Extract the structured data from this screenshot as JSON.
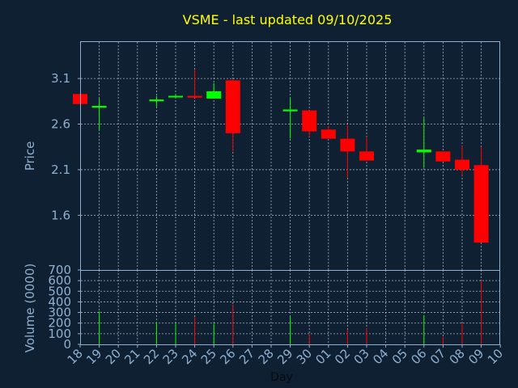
{
  "chart_data": [
    {
      "type": "candlestick",
      "title": "VSME - last updated 09/10/2025",
      "xlabel": "Day",
      "ylabel": "Price",
      "ylim": [
        1.0,
        3.5
      ],
      "y_ticks": [
        "1.6",
        "2.1",
        "2.6",
        "3.1"
      ],
      "y_tick_values": [
        1.6,
        2.1,
        2.6,
        3.1
      ],
      "grid": true,
      "x_tick_labels": [
        "18",
        "19",
        "20",
        "21",
        "22",
        "23",
        "24",
        "25",
        "26",
        "27",
        "28",
        "29",
        "30",
        "01",
        "02",
        "03",
        "04",
        "05",
        "06",
        "07",
        "08",
        "09",
        "10"
      ],
      "bars": [
        {
          "day": "18",
          "open": 2.93,
          "high": 2.93,
          "low": 2.82,
          "close": 2.82
        },
        {
          "day": "19",
          "open": 2.78,
          "high": 2.88,
          "low": 2.53,
          "close": 2.8
        },
        {
          "day": "22",
          "open": 2.85,
          "high": 2.91,
          "low": 2.79,
          "close": 2.87
        },
        {
          "day": "23",
          "open": 2.9,
          "high": 2.93,
          "low": 2.89,
          "close": 2.91
        },
        {
          "day": "24",
          "open": 2.91,
          "high": 3.2,
          "low": 2.89,
          "close": 2.89
        },
        {
          "day": "25",
          "open": 2.88,
          "high": 3.05,
          "low": 2.88,
          "close": 2.96
        },
        {
          "day": "26",
          "open": 3.08,
          "high": 3.09,
          "low": 2.3,
          "close": 2.5
        },
        {
          "day": "29",
          "open": 2.74,
          "high": 2.89,
          "low": 2.44,
          "close": 2.76
        },
        {
          "day": "30",
          "open": 2.75,
          "high": 2.75,
          "low": 2.46,
          "close": 2.52
        },
        {
          "day": "01",
          "open": 2.54,
          "high": 2.58,
          "low": 2.44,
          "close": 2.44
        },
        {
          "day": "02",
          "open": 2.44,
          "high": 2.59,
          "low": 2.01,
          "close": 2.3
        },
        {
          "day": "03",
          "open": 2.3,
          "high": 2.46,
          "low": 2.2,
          "close": 2.2
        },
        {
          "day": "06",
          "open": 2.29,
          "high": 2.67,
          "low": 2.12,
          "close": 2.32
        },
        {
          "day": "07",
          "open": 2.3,
          "high": 2.3,
          "low": 2.19,
          "close": 2.19
        },
        {
          "day": "08",
          "open": 2.21,
          "high": 2.36,
          "low": 2.04,
          "close": 2.1
        },
        {
          "day": "09",
          "open": 2.15,
          "high": 2.35,
          "low": 1.3,
          "close": 1.3
        }
      ]
    },
    {
      "type": "bar",
      "ylabel": "Volume (0000)",
      "ylim": [
        0,
        700
      ],
      "y_ticks": [
        "0",
        "100",
        "200",
        "300",
        "400",
        "500",
        "600",
        "700"
      ],
      "y_tick_values": [
        0,
        100,
        200,
        300,
        400,
        500,
        600,
        700
      ],
      "grid": true,
      "categories": [
        "19",
        "22",
        "23",
        "24",
        "25",
        "26",
        "29",
        "30",
        "02",
        "03",
        "06",
        "07",
        "08",
        "09"
      ],
      "values": [
        310,
        205,
        195,
        255,
        195,
        375,
        260,
        95,
        135,
        150,
        275,
        70,
        195,
        600
      ],
      "colors_up_down": [
        "up",
        "up",
        "up",
        "down",
        "up",
        "down",
        "up",
        "down",
        "down",
        "down",
        "up",
        "down",
        "down",
        "down"
      ]
    }
  ],
  "colors": {
    "background": "#0f2033",
    "up": "#00ff00",
    "down": "#ff0000",
    "title": "#ffff00",
    "axis_text": "#8fb0cf"
  }
}
